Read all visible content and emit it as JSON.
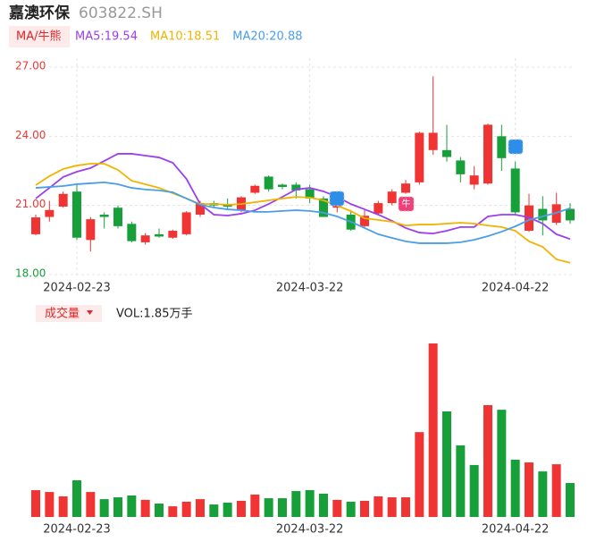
{
  "chart_data": [
    {
      "type": "candlestick",
      "title": "嘉澳环保",
      "subtitle": "603822.SH",
      "legend_title": "MA/牛熊",
      "badge": "牛",
      "categories": [
        null,
        null,
        null,
        "2024-02-23",
        null,
        null,
        null,
        null,
        null,
        null,
        null,
        null,
        null,
        null,
        null,
        null,
        null,
        null,
        null,
        null,
        "2024-03-22",
        null,
        null,
        null,
        null,
        null,
        null,
        null,
        null,
        null,
        null,
        null,
        null,
        null,
        null,
        "2024-04-22",
        null,
        null,
        null,
        null
      ],
      "open": [
        19.75,
        20.5,
        20.95,
        21.6,
        19.5,
        20.6,
        20.9,
        20.2,
        19.4,
        19.75,
        19.6,
        19.75,
        20.6,
        21.1,
        21.05,
        20.8,
        21.55,
        22.25,
        21.9,
        21.9,
        21.7,
        21.3,
        20.9,
        20.6,
        20.1,
        20.65,
        21.1,
        21.55,
        22.0,
        23.4,
        23.4,
        22.95,
        21.9,
        21.95,
        24.0,
        22.6,
        19.9,
        20.85,
        20.25,
        20.85
      ],
      "close": [
        20.48,
        20.8,
        21.5,
        19.6,
        20.4,
        20.5,
        20.1,
        19.45,
        19.7,
        19.65,
        19.9,
        20.7,
        21.1,
        21.0,
        20.95,
        21.35,
        21.85,
        21.7,
        21.8,
        21.65,
        21.3,
        20.5,
        21.0,
        19.95,
        20.55,
        21.1,
        21.6,
        21.95,
        24.15,
        24.15,
        23.1,
        22.35,
        22.3,
        24.5,
        23.05,
        20.7,
        21.0,
        20.35,
        21.05,
        20.35
      ],
      "high": [
        20.6,
        21.2,
        21.6,
        21.9,
        20.5,
        20.7,
        21.0,
        20.3,
        19.8,
        20.0,
        19.95,
        20.75,
        21.2,
        21.2,
        21.3,
        21.4,
        21.9,
        22.3,
        21.95,
        22.0,
        21.9,
        21.4,
        21.2,
        20.8,
        20.8,
        21.2,
        21.7,
        22.1,
        24.2,
        26.6,
        24.5,
        23.1,
        22.7,
        24.55,
        24.5,
        22.9,
        21.5,
        21.4,
        21.55,
        21.1
      ],
      "low": [
        19.7,
        20.3,
        20.9,
        19.5,
        19.0,
        20.0,
        20.0,
        19.4,
        19.3,
        19.6,
        19.55,
        19.7,
        20.5,
        20.9,
        20.8,
        20.7,
        21.5,
        21.6,
        21.7,
        21.3,
        21.1,
        20.5,
        20.7,
        19.9,
        20.0,
        20.6,
        21.0,
        21.5,
        21.9,
        23.2,
        22.9,
        22.0,
        21.7,
        21.9,
        22.5,
        20.6,
        19.85,
        19.7,
        20.15,
        20.2
      ],
      "up_color": "#f03434",
      "down_color": "#17a03a",
      "series": [
        {
          "name": "MA5:19.54",
          "color": "#9b3ef0",
          "values": [
            21.3,
            21.76,
            22.23,
            22.46,
            22.62,
            22.93,
            23.24,
            23.24,
            23.16,
            23.08,
            22.85,
            22.15,
            21.06,
            20.6,
            20.56,
            20.64,
            20.79,
            21.06,
            21.37,
            21.69,
            21.76,
            21.61,
            21.37,
            21.06,
            20.83,
            20.6,
            20.33,
            20.02,
            19.82,
            19.78,
            19.9,
            20.06,
            20.06,
            20.52,
            20.6,
            20.6,
            20.48,
            20.21,
            19.75,
            19.54
          ]
        },
        {
          "name": "MA10:18.51",
          "color": "#f0b400",
          "values": [
            21.88,
            22.27,
            22.58,
            22.73,
            22.81,
            22.81,
            22.54,
            22.07,
            21.92,
            21.76,
            21.53,
            21.3,
            21.06,
            21.06,
            21.03,
            21.06,
            21.14,
            21.22,
            21.3,
            21.37,
            21.34,
            21.22,
            20.99,
            20.75,
            20.44,
            20.37,
            20.29,
            20.13,
            20.17,
            20.17,
            20.21,
            20.25,
            20.21,
            20.13,
            20.06,
            19.9,
            19.44,
            19.2,
            18.66,
            18.51
          ]
        },
        {
          "name": "MA20:20.88",
          "color": "#4a9ee8",
          "values": [
            21.76,
            21.8,
            21.84,
            21.92,
            21.96,
            22.0,
            21.92,
            21.76,
            21.69,
            21.65,
            21.57,
            21.3,
            21.03,
            20.91,
            20.83,
            20.79,
            20.72,
            20.72,
            20.76,
            20.79,
            20.76,
            20.68,
            20.52,
            20.29,
            20.02,
            19.75,
            19.59,
            19.44,
            19.36,
            19.36,
            19.36,
            19.4,
            19.51,
            19.67,
            19.86,
            20.09,
            20.37,
            20.52,
            20.68,
            20.88
          ]
        }
      ],
      "ylim": [
        18,
        27
      ],
      "yticks": [
        {
          "value": 27,
          "label": "27.00"
        },
        {
          "value": 24,
          "label": "24.00"
        },
        {
          "value": 21,
          "label": "21.00"
        },
        {
          "value": 18,
          "label": "18.00"
        }
      ],
      "ytick_colors": [
        "#f03434",
        "#f03434",
        "#f03434",
        "#17a03a"
      ],
      "grid": true
    },
    {
      "type": "bar",
      "title": "成交量",
      "subtitle": "VOL:1.85万手",
      "categories": [
        null,
        null,
        null,
        "2024-02-23",
        null,
        null,
        null,
        null,
        null,
        null,
        null,
        null,
        null,
        null,
        null,
        null,
        null,
        null,
        null,
        null,
        "2024-03-22",
        null,
        null,
        null,
        null,
        null,
        null,
        null,
        null,
        null,
        null,
        null,
        null,
        null,
        null,
        "2024-04-22",
        null,
        null,
        null,
        null
      ],
      "values": [
        1.46,
        1.36,
        1.12,
        2.0,
        1.36,
        0.97,
        1.07,
        1.17,
        0.93,
        0.73,
        0.58,
        0.83,
        0.97,
        0.68,
        0.78,
        0.88,
        1.22,
        1.02,
        1.02,
        1.41,
        1.46,
        1.27,
        0.93,
        0.83,
        0.88,
        1.12,
        1.07,
        1.07,
        4.62,
        9.45,
        5.75,
        3.9,
        2.83,
        6.09,
        5.84,
        3.12,
        2.97,
        2.48,
        2.87,
        1.85
      ],
      "colors": [
        "#f03434",
        "#f03434",
        "#f03434",
        "#17a03a",
        "#f03434",
        "#17a03a",
        "#17a03a",
        "#17a03a",
        "#f03434",
        "#17a03a",
        "#f03434",
        "#f03434",
        "#f03434",
        "#17a03a",
        "#17a03a",
        "#f03434",
        "#f03434",
        "#17a03a",
        "#17a03a",
        "#17a03a",
        "#17a03a",
        "#17a03a",
        "#f03434",
        "#17a03a",
        "#f03434",
        "#f03434",
        "#f03434",
        "#f03434",
        "#f03434",
        "#f03434",
        "#17a03a",
        "#17a03a",
        "#17a03a",
        "#f03434",
        "#17a03a",
        "#17a03a",
        "#f03434",
        "#17a03a",
        "#f03434",
        "#17a03a"
      ],
      "ylim": [
        0,
        9.5
      ]
    }
  ]
}
